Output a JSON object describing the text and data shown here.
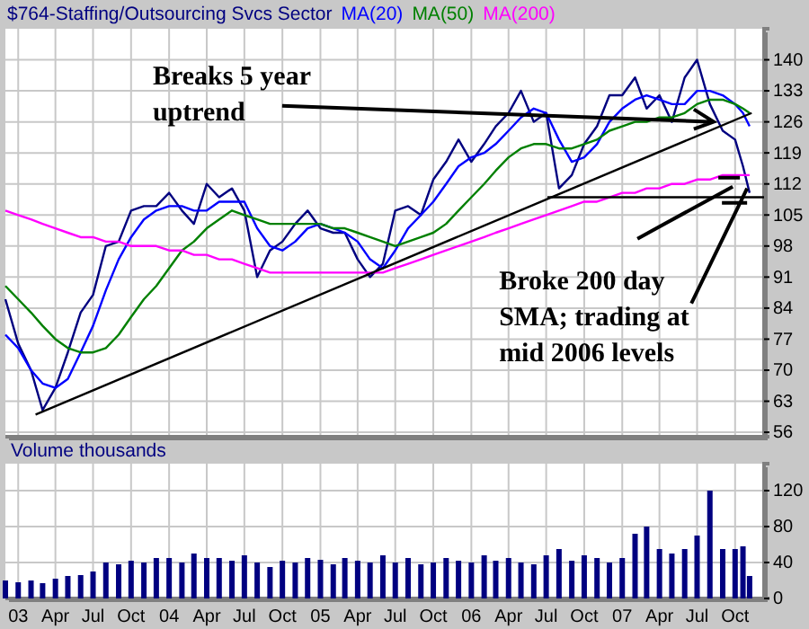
{
  "chart_data": [
    {
      "type": "line",
      "title": "$764-Staffing/Outsourcing Svcs Sector",
      "legend": "top",
      "grid": true,
      "tick_labels": "y",
      "x": [
        "2002-12",
        "2003-01",
        "2003-02",
        "2003-03",
        "2003-04",
        "2003-05",
        "2003-06",
        "2003-07",
        "2003-08",
        "2003-09",
        "2003-10",
        "2003-11",
        "2003-12",
        "2004-01",
        "2004-02",
        "2004-03",
        "2004-04",
        "2004-05",
        "2004-06",
        "2004-07",
        "2004-08",
        "2004-09",
        "2004-10",
        "2004-11",
        "2004-12",
        "2005-01",
        "2005-02",
        "2005-03",
        "2005-04",
        "2005-05",
        "2005-06",
        "2005-07",
        "2005-08",
        "2005-09",
        "2005-10",
        "2005-11",
        "2005-12",
        "2006-01",
        "2006-02",
        "2006-03",
        "2006-04",
        "2006-05",
        "2006-06",
        "2006-07",
        "2006-08",
        "2006-09",
        "2006-10",
        "2006-11",
        "2006-12",
        "2007-01",
        "2007-02",
        "2007-03",
        "2007-04",
        "2007-05",
        "2007-06",
        "2007-07",
        "2007-08",
        "2007-09",
        "2007-10",
        "2007-10-20",
        "2007-11-05"
      ],
      "xlim": [
        "2002-12-01",
        "2007-12-10"
      ],
      "xticks": [
        {
          "value": "2003-01",
          "label": null
        },
        {
          "value": "2003-04",
          "label": null
        },
        {
          "value": "2003-07",
          "label": null
        },
        {
          "value": "2003-10",
          "label": null
        },
        {
          "value": "2004-01",
          "label": null
        },
        {
          "value": "2004-04",
          "label": null
        },
        {
          "value": "2004-07",
          "label": null
        },
        {
          "value": "2004-10",
          "label": null
        },
        {
          "value": "2005-01",
          "label": null
        },
        {
          "value": "2005-04",
          "label": null
        },
        {
          "value": "2005-07",
          "label": null
        },
        {
          "value": "2005-10",
          "label": null
        },
        {
          "value": "2006-01",
          "label": null
        },
        {
          "value": "2006-04",
          "label": null
        },
        {
          "value": "2006-07",
          "label": null
        },
        {
          "value": "2006-10",
          "label": null
        },
        {
          "value": "2007-01",
          "label": null
        },
        {
          "value": "2007-04",
          "label": null
        },
        {
          "value": "2007-07",
          "label": null
        },
        {
          "value": "2007-10",
          "label": null
        }
      ],
      "ylim": [
        55,
        147
      ],
      "yticks": [
        56,
        63,
        70,
        77,
        84,
        91,
        98,
        105,
        112,
        119,
        126,
        133,
        140
      ],
      "series": [
        {
          "color": "#000080",
          "values": [
            86,
            76,
            70,
            61,
            66,
            74,
            83,
            87,
            98,
            99,
            106,
            107,
            107,
            110,
            106,
            103,
            112,
            109,
            111,
            106,
            91,
            97,
            99,
            103,
            106,
            102,
            101,
            101,
            95,
            91,
            94,
            106,
            107,
            105,
            113,
            117,
            122,
            117,
            121,
            125,
            128,
            133,
            126,
            128,
            111,
            114,
            121,
            125,
            132,
            132,
            136,
            129,
            132,
            126,
            136,
            140,
            130,
            124,
            122,
            116,
            110
          ]
        },
        {
          "name": "MA(20)",
          "color": "#0000ff",
          "values": [
            78,
            75,
            70,
            67,
            66,
            68,
            74,
            80,
            88,
            95,
            100,
            104,
            106,
            107,
            107,
            106,
            106,
            108,
            108,
            108,
            102,
            98,
            97,
            99,
            102,
            103,
            102,
            101,
            99,
            95,
            93,
            97,
            102,
            105,
            108,
            112,
            116,
            118,
            119,
            121,
            124,
            127,
            129,
            128,
            122,
            117,
            118,
            121,
            126,
            129,
            131,
            132,
            131,
            130,
            130,
            133,
            133,
            132,
            130,
            128,
            125
          ]
        },
        {
          "name": "MA(50)",
          "color": "#008000",
          "values": [
            89,
            86,
            83,
            80,
            77,
            75,
            74,
            74,
            75,
            78,
            82,
            86,
            89,
            93,
            97,
            99,
            102,
            104,
            106,
            105,
            104,
            103,
            103,
            103,
            103,
            103,
            102,
            102,
            101,
            100,
            99,
            98,
            99,
            100,
            101,
            103,
            106,
            109,
            112,
            115,
            118,
            120,
            121,
            121,
            120,
            120,
            121,
            122,
            124,
            125,
            126,
            126,
            127,
            127,
            128,
            130,
            131,
            131,
            130,
            129,
            128
          ]
        },
        {
          "name": "MA(200)",
          "color": "#ff00ff",
          "values": [
            106,
            105,
            104,
            103,
            102,
            101,
            100,
            100,
            99,
            99,
            98,
            98,
            98,
            97,
            97,
            96,
            96,
            95,
            95,
            94,
            93,
            92,
            92,
            92,
            92,
            92,
            92,
            92,
            92,
            92,
            92,
            93,
            94,
            95,
            96,
            97,
            98,
            99,
            100,
            101,
            102,
            103,
            104,
            105,
            106,
            107,
            108,
            108,
            109,
            110,
            110,
            111,
            111,
            112,
            112,
            113,
            113,
            114,
            114,
            114,
            114
          ]
        },
        {
          "color": "#000000",
          "x": [
            "2003-02-12",
            "2007-11-10"
          ],
          "values": [
            60,
            128
          ]
        },
        {
          "color": "#000000",
          "x": [
            "2006-07-04",
            "2007-12-10"
          ],
          "values": [
            109,
            109
          ]
        }
      ],
      "annotations": [
        {
          "text": "Breaks 5 year uptrend",
          "x": "2007-08-10",
          "y": 126
        },
        {
          "text": "Broke 200 day SMA; trading at mid 2006 levels",
          "x": "2007-10-30",
          "y": 111
        }
      ]
    },
    {
      "type": "bar",
      "title": "Volume thousands",
      "grid": true,
      "color": "#000080",
      "x": [
        "2002-12",
        "2003-01",
        "2003-02",
        "2003-03",
        "2003-04",
        "2003-05",
        "2003-06",
        "2003-07",
        "2003-08",
        "2003-09",
        "2003-10",
        "2003-11",
        "2003-12",
        "2004-01",
        "2004-02",
        "2004-03",
        "2004-04",
        "2004-05",
        "2004-06",
        "2004-07",
        "2004-08",
        "2004-09",
        "2004-10",
        "2004-11",
        "2004-12",
        "2005-01",
        "2005-02",
        "2005-03",
        "2005-04",
        "2005-05",
        "2005-06",
        "2005-07",
        "2005-08",
        "2005-09",
        "2005-10",
        "2005-11",
        "2005-12",
        "2006-01",
        "2006-02",
        "2006-03",
        "2006-04",
        "2006-05",
        "2006-06",
        "2006-07",
        "2006-08",
        "2006-09",
        "2006-10",
        "2006-11",
        "2006-12",
        "2007-01",
        "2007-02",
        "2007-03",
        "2007-04",
        "2007-05",
        "2007-06",
        "2007-07",
        "2007-08",
        "2007-09",
        "2007-10",
        "2007-10-20",
        "2007-11-05"
      ],
      "values": [
        20,
        18,
        20,
        17,
        22,
        25,
        26,
        30,
        40,
        38,
        42,
        40,
        45,
        45,
        40,
        50,
        45,
        45,
        42,
        48,
        40,
        35,
        42,
        40,
        45,
        43,
        38,
        45,
        42,
        40,
        48,
        40,
        45,
        38,
        40,
        45,
        42,
        40,
        48,
        42,
        45,
        40,
        38,
        48,
        55,
        42,
        48,
        45,
        40,
        45,
        72,
        80,
        55,
        50,
        55,
        70,
        120,
        55,
        55,
        58,
        25
      ],
      "xlim": [
        "2002-12-01",
        "2007-12-10"
      ],
      "xticks": [
        {
          "value": "2003-01",
          "label": "03"
        },
        {
          "value": "2003-04",
          "label": "Apr"
        },
        {
          "value": "2003-07",
          "label": "Jul"
        },
        {
          "value": "2003-10",
          "label": "Oct"
        },
        {
          "value": "2004-01",
          "label": "04"
        },
        {
          "value": "2004-04",
          "label": "Apr"
        },
        {
          "value": "2004-07",
          "label": "Jul"
        },
        {
          "value": "2004-10",
          "label": "Oct"
        },
        {
          "value": "2005-01",
          "label": "05"
        },
        {
          "value": "2005-04",
          "label": "Apr"
        },
        {
          "value": "2005-07",
          "label": "Jul"
        },
        {
          "value": "2005-10",
          "label": "Oct"
        },
        {
          "value": "2006-01",
          "label": "06"
        },
        {
          "value": "2006-04",
          "label": "Apr"
        },
        {
          "value": "2006-07",
          "label": "Jul"
        },
        {
          "value": "2006-10",
          "label": "Oct"
        },
        {
          "value": "2007-01",
          "label": "07"
        },
        {
          "value": "2007-04",
          "label": "Apr"
        },
        {
          "value": "2007-07",
          "label": "Jul"
        },
        {
          "value": "2007-10",
          "label": "Oct"
        }
      ],
      "ylim": [
        0,
        150
      ],
      "yticks": [
        0,
        40,
        80,
        120
      ]
    }
  ]
}
